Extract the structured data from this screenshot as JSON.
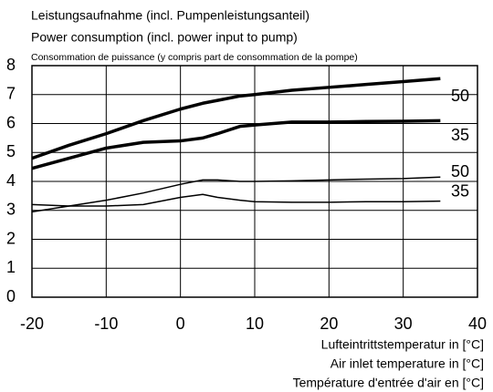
{
  "chart_data": {
    "type": "line",
    "title": [
      "Leistungsaufnahme (incl. Pumpenleistungsanteil)",
      "Power consumption (incl. power input to pump)",
      "Consommation de puissance (y compris part de consommation de la pompe)"
    ],
    "xlabel": [
      "Lufteintrittstemperatur in [°C]",
      "Air inlet temperature in [°C]",
      "Température d'entrée d'air en [°C]"
    ],
    "x": [
      -20,
      -15,
      -10,
      -5,
      0,
      3,
      5,
      8,
      10,
      15,
      20,
      25,
      30,
      35
    ],
    "series": [
      {
        "name": "50",
        "color": "#000000",
        "line_width": 3.5,
        "values": [
          4.8,
          5.25,
          5.65,
          6.1,
          6.5,
          6.7,
          6.8,
          6.95,
          7.0,
          7.15,
          7.25,
          7.35,
          7.45,
          7.55
        ]
      },
      {
        "name": "35",
        "color": "#000000",
        "line_width": 3.5,
        "values": [
          4.45,
          4.8,
          5.15,
          5.35,
          5.4,
          5.5,
          5.65,
          5.9,
          5.95,
          6.05,
          6.05,
          6.07,
          6.08,
          6.1
        ]
      },
      {
        "name": "50",
        "color": "#000000",
        "line_width": 1.5,
        "values": [
          2.95,
          3.15,
          3.35,
          3.6,
          3.9,
          4.05,
          4.05,
          4.0,
          4.0,
          4.02,
          4.05,
          4.08,
          4.1,
          4.15
        ]
      },
      {
        "name": "35",
        "color": "#000000",
        "line_width": 1.5,
        "values": [
          3.2,
          3.15,
          3.15,
          3.2,
          3.45,
          3.55,
          3.45,
          3.35,
          3.3,
          3.28,
          3.28,
          3.3,
          3.3,
          3.32
        ]
      }
    ],
    "xlim": [
      -20,
      40
    ],
    "xticks": [
      -20,
      -10,
      0,
      10,
      20,
      30,
      40
    ],
    "ylim": [
      0,
      8
    ],
    "yticks": [
      0,
      1,
      2,
      3,
      4,
      5,
      6,
      7,
      8
    ],
    "grid": true
  }
}
